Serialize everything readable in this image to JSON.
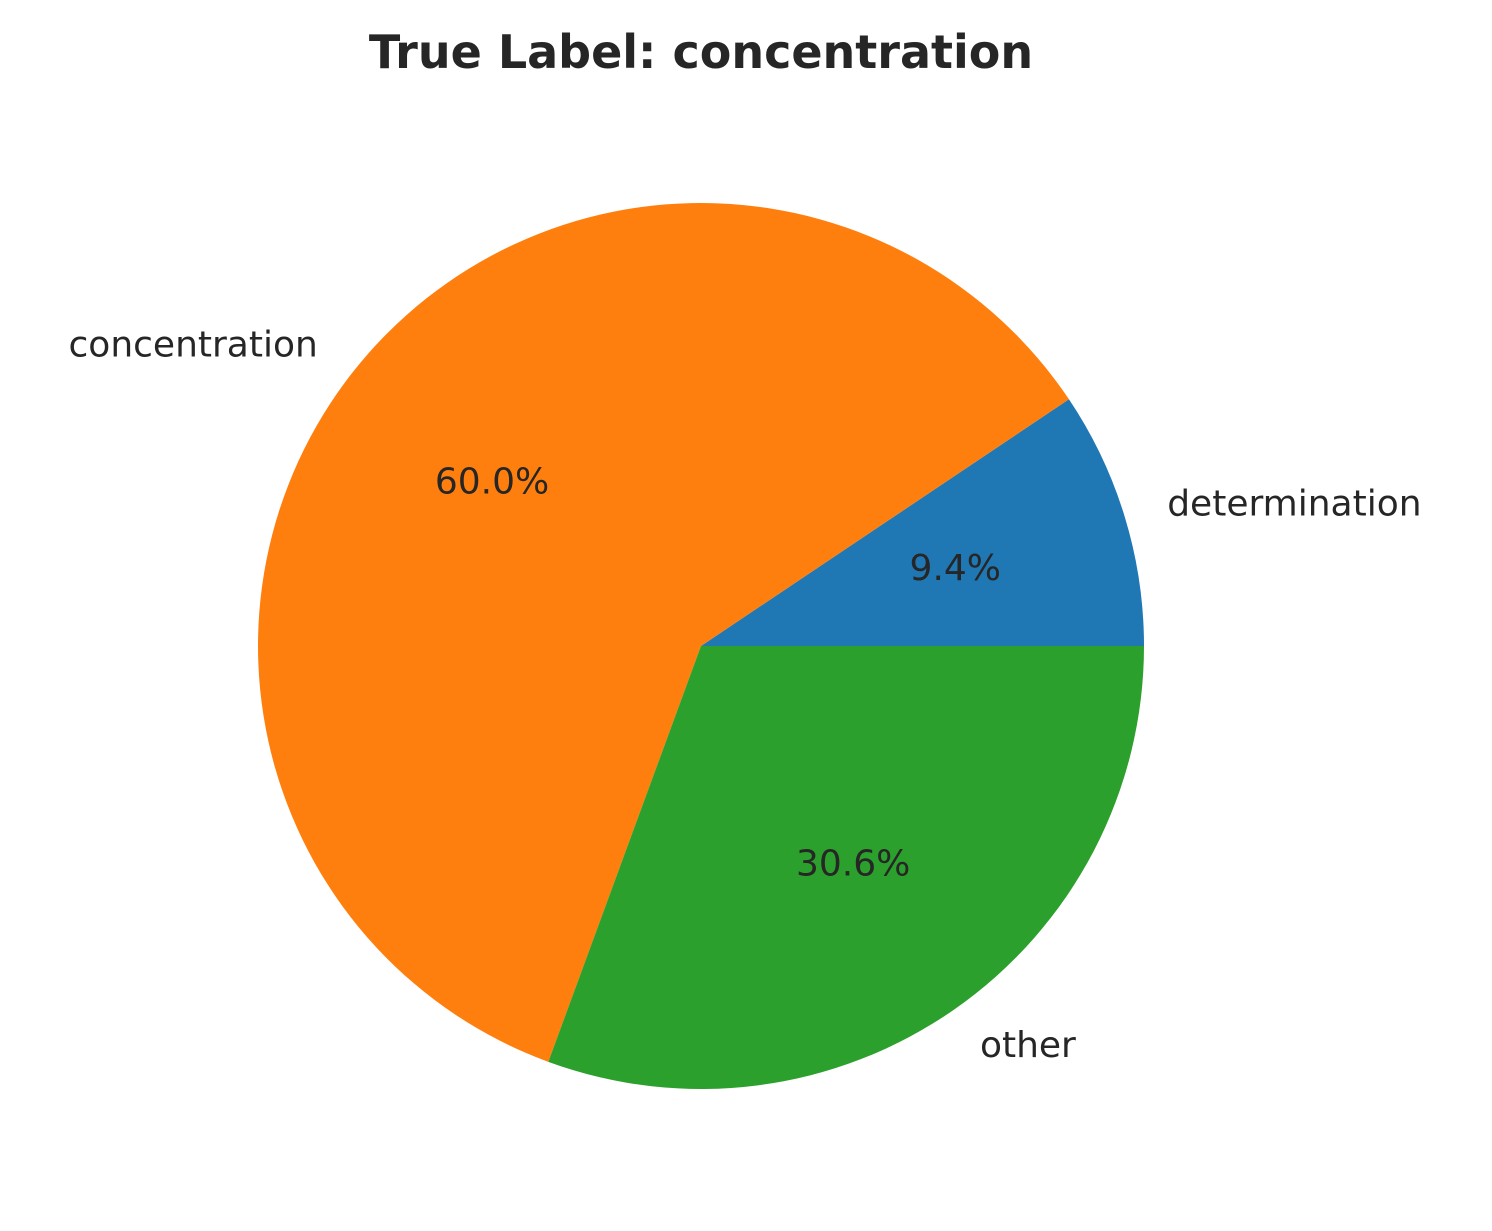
{
  "chart_data": {
    "type": "pie",
    "title": "True Label: concentration",
    "start_angle_deg": 0,
    "direction": "counterclockwise",
    "slices": [
      {
        "label": "determination",
        "value": 9.4,
        "pct_label": "9.4%",
        "color": "#1f77b4"
      },
      {
        "label": "concentration",
        "value": 60.0,
        "pct_label": "60.0%",
        "color": "#ff7f0e"
      },
      {
        "label": "other",
        "value": 30.6,
        "pct_label": "30.6%",
        "color": "#2ca02c"
      }
    ]
  }
}
